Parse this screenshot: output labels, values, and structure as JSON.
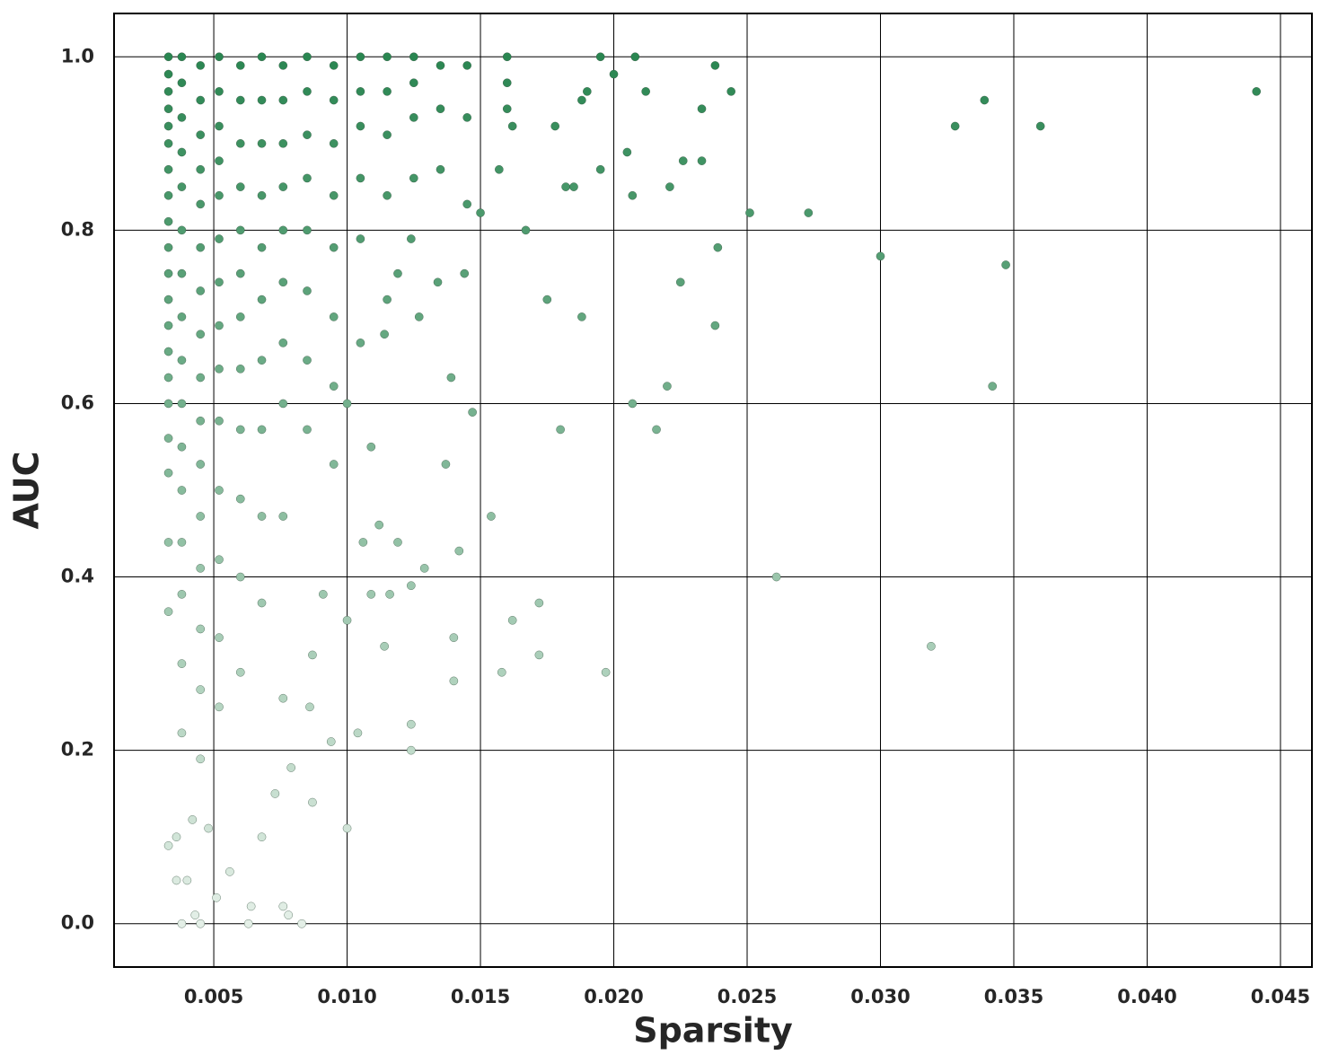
{
  "chart_data": {
    "type": "scatter",
    "xlabel": "Sparsity",
    "ylabel": "AUC",
    "xlim": [
      0.00126,
      0.04618
    ],
    "ylim": [
      -0.05,
      1.05
    ],
    "xticks": [
      0.005,
      {
        "value": 0.01,
        "label": "0.010"
      },
      0.015,
      {
        "value": 0.02,
        "label": "0.020"
      },
      0.025,
      {
        "value": 0.03,
        "label": "0.030"
      },
      0.035,
      {
        "value": 0.04,
        "label": "0.040"
      },
      0.045
    ],
    "yticks": [
      {
        "value": 0,
        "label": "0.0"
      },
      0.2,
      0.4,
      0.6,
      0.8,
      {
        "value": 1,
        "label": "1.0"
      }
    ],
    "grid": true,
    "colormap": [
      "#e4efe7",
      "#2a8651"
    ],
    "x": [
      0.0441,
      0.0328,
      0.0339,
      0.036,
      0.0347,
      0.0342,
      0.0319,
      0.03,
      0.0273,
      0.0251,
      0.0261,
      0.0238,
      0.0244,
      0.0239,
      0.0238,
      0.0233,
      0.0233,
      0.0226,
      0.0221,
      0.0225,
      0.022,
      0.0216,
      0.0212,
      0.0208,
      0.0207,
      0.0205,
      0.0207,
      0.0197,
      0.02,
      0.0195,
      0.0195,
      0.019,
      0.0188,
      0.0188,
      0.018,
      0.0178,
      0.0182,
      0.0185,
      0.0175,
      0.0172,
      0.0172,
      0.0167,
      0.0162,
      0.0158,
      0.0154,
      0.0157,
      0.0162,
      0.015,
      0.0147,
      0.0142,
      0.014,
      0.014,
      0.0139,
      0.0137,
      0.0144,
      0.0134,
      0.0127,
      0.0129,
      0.0124,
      0.0124,
      0.0124,
      0.0124,
      0.0119,
      0.0119,
      0.0116,
      0.0114,
      0.0114,
      0.0112,
      0.0109,
      0.0109,
      0.0106,
      0.0104,
      0.01,
      0.01,
      0.01,
      0.0094,
      0.0091,
      0.0087,
      0.0087,
      0.0086,
      0.0079,
      0.0083,
      0.0078,
      0.0076,
      0.0073,
      0.0068,
      0.0064,
      0.0063,
      0.0056,
      0.0051,
      0.0045,
      0.0043,
      0.0038,
      0.004,
      0.0036,
      0.0033,
      0.0036,
      0.0042,
      0.0048,
      0.0033,
      0.0033,
      0.0033,
      0.0033,
      0.0033,
      0.0033,
      0.0033,
      0.0033,
      0.0033,
      0.0033,
      0.0033,
      0.0033,
      0.0033,
      0.0033,
      0.0033,
      0.0033,
      0.0033,
      0.0033,
      0.0033,
      0.0033,
      0.0038,
      0.0038,
      0.0038,
      0.0038,
      0.0038,
      0.0038,
      0.0038,
      0.0038,
      0.0038,
      0.0038,
      0.0038,
      0.0038,
      0.0038,
      0.0038,
      0.0038,
      0.0038,
      0.0045,
      0.0045,
      0.0045,
      0.0045,
      0.0045,
      0.0045,
      0.0045,
      0.0045,
      0.0045,
      0.0045,
      0.0045,
      0.0045,
      0.0045,
      0.0045,
      0.0045,
      0.0045,
      0.0052,
      0.0052,
      0.0052,
      0.0052,
      0.0052,
      0.0052,
      0.0052,
      0.0052,
      0.0052,
      0.0052,
      0.0052,
      0.0052,
      0.0052,
      0.0052,
      0.006,
      0.006,
      0.006,
      0.006,
      0.006,
      0.006,
      0.006,
      0.006,
      0.006,
      0.006,
      0.006,
      0.006,
      0.0068,
      0.0068,
      0.0068,
      0.0068,
      0.0068,
      0.0068,
      0.0068,
      0.0068,
      0.0068,
      0.0068,
      0.0076,
      0.0076,
      0.0076,
      0.0076,
      0.0076,
      0.0076,
      0.0076,
      0.0076,
      0.0076,
      0.0076,
      0.0085,
      0.0085,
      0.0085,
      0.0085,
      0.0085,
      0.0085,
      0.0085,
      0.0085,
      0.0095,
      0.0095,
      0.0095,
      0.0095,
      0.0095,
      0.0095,
      0.0095,
      0.0095,
      0.0105,
      0.0105,
      0.0105,
      0.0105,
      0.0105,
      0.0105,
      0.0115,
      0.0115,
      0.0115,
      0.0115,
      0.0115,
      0.0125,
      0.0125,
      0.0125,
      0.0125,
      0.0135,
      0.0135,
      0.0135,
      0.0145,
      0.0145,
      0.0145,
      0.016,
      0.016,
      0.016
    ],
    "values": [
      0.96,
      0.92,
      0.95,
      0.92,
      0.76,
      0.62,
      0.32,
      0.77,
      0.82,
      0.82,
      0.4,
      0.99,
      0.96,
      0.78,
      0.69,
      0.94,
      0.88,
      0.88,
      0.85,
      0.74,
      0.62,
      0.57,
      0.96,
      1.0,
      0.84,
      0.89,
      0.6,
      0.29,
      0.98,
      1.0,
      0.87,
      0.96,
      0.7,
      0.95,
      0.57,
      0.92,
      0.85,
      0.85,
      0.72,
      0.37,
      0.31,
      0.8,
      0.35,
      0.29,
      0.47,
      0.87,
      0.92,
      0.82,
      0.59,
      0.43,
      0.33,
      0.28,
      0.63,
      0.53,
      0.75,
      0.74,
      0.7,
      0.41,
      0.39,
      0.2,
      0.23,
      0.79,
      0.44,
      0.75,
      0.38,
      0.68,
      0.32,
      0.46,
      0.38,
      0.55,
      0.44,
      0.22,
      0.11,
      0.35,
      0.6,
      0.21,
      0.38,
      0.14,
      0.31,
      0.25,
      0.18,
      0.0,
      0.01,
      0.02,
      0.15,
      0.1,
      0.02,
      0.0,
      0.06,
      0.03,
      0.0,
      0.01,
      0.0,
      0.05,
      0.05,
      0.09,
      0.1,
      0.12,
      0.11,
      1.0,
      0.98,
      0.96,
      0.94,
      0.92,
      0.9,
      0.87,
      0.84,
      0.81,
      0.78,
      0.75,
      0.72,
      0.69,
      0.66,
      0.63,
      0.6,
      0.56,
      0.52,
      0.44,
      0.36,
      1.0,
      0.97,
      0.93,
      0.89,
      0.85,
      0.8,
      0.75,
      0.7,
      0.65,
      0.6,
      0.55,
      0.5,
      0.44,
      0.38,
      0.3,
      0.22,
      0.99,
      0.95,
      0.91,
      0.87,
      0.83,
      0.78,
      0.73,
      0.68,
      0.63,
      0.58,
      0.53,
      0.47,
      0.41,
      0.34,
      0.27,
      0.19,
      1.0,
      0.96,
      0.92,
      0.88,
      0.84,
      0.79,
      0.74,
      0.69,
      0.64,
      0.58,
      0.5,
      0.42,
      0.33,
      0.25,
      0.99,
      0.95,
      0.9,
      0.85,
      0.8,
      0.75,
      0.7,
      0.64,
      0.57,
      0.49,
      0.4,
      0.29,
      1.0,
      0.95,
      0.9,
      0.84,
      0.78,
      0.72,
      0.65,
      0.57,
      0.47,
      0.37,
      0.99,
      0.95,
      0.9,
      0.85,
      0.8,
      0.74,
      0.67,
      0.6,
      0.47,
      0.26,
      1.0,
      0.96,
      0.91,
      0.86,
      0.8,
      0.73,
      0.65,
      0.57,
      0.99,
      0.95,
      0.9,
      0.84,
      0.78,
      0.7,
      0.62,
      0.53,
      1.0,
      0.96,
      0.92,
      0.86,
      0.79,
      0.67,
      1.0,
      0.96,
      0.91,
      0.84,
      0.72,
      1.0,
      0.97,
      0.93,
      0.86,
      0.99,
      0.94,
      0.87,
      0.99,
      0.93,
      0.83,
      1.0,
      0.97,
      0.94
    ]
  }
}
